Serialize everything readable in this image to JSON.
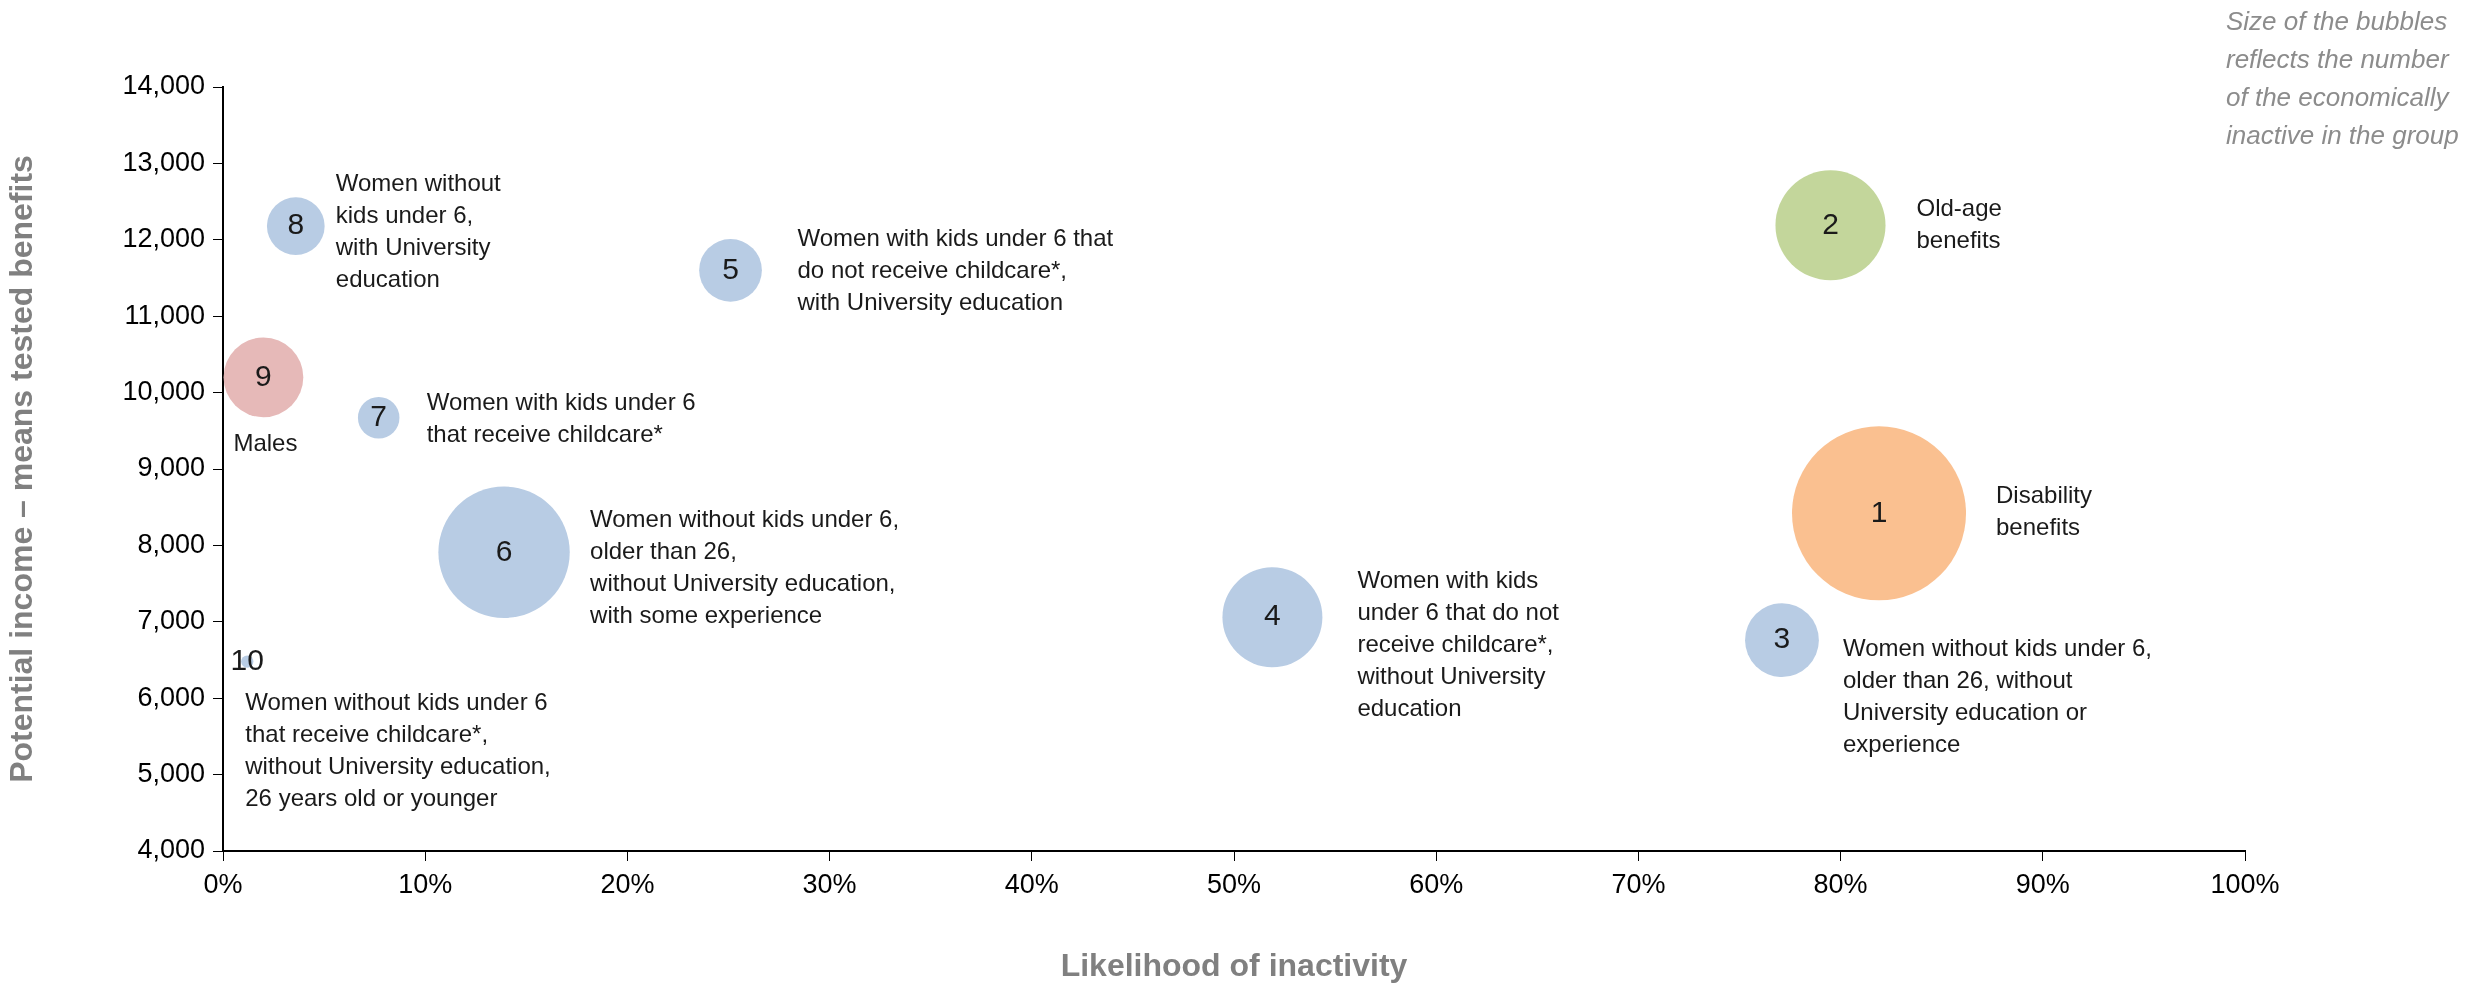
{
  "chart_data": {
    "type": "bubble",
    "xlabel": "Likelihood of inactivity",
    "ylabel": "Potential income – means tested benefits",
    "x": [
      81.9,
      79.5,
      77.1,
      51.9,
      25.1,
      13.9,
      7.7,
      3.6,
      2.0,
      1.2
    ],
    "values": [
      8420,
      12190,
      6760,
      7060,
      11600,
      7910,
      9670,
      12180,
      10200,
      6480
    ],
    "sizes": [
      1,
      0.4,
      0.18,
      0.33,
      0.13,
      0.57,
      0.057,
      0.11,
      0.21,
      0.005
    ],
    "colors": [
      "#fac090",
      "#c3d69b",
      "#b8cce4",
      "#b8cce4",
      "#b8cce4",
      "#b8cce4",
      "#b8cce4",
      "#b8cce4",
      "#e6b9b8",
      "#b8cce4"
    ],
    "xlim": [
      0,
      100
    ],
    "xticks": [
      {
        "value": 0,
        "label": "0%"
      },
      {
        "value": 10,
        "label": "10%"
      },
      {
        "value": 20,
        "label": "20%"
      },
      {
        "value": 30,
        "label": "30%"
      },
      {
        "value": 40,
        "label": "40%"
      },
      {
        "value": 50,
        "label": "50%"
      },
      {
        "value": 60,
        "label": "60%"
      },
      {
        "value": 70,
        "label": "70%"
      },
      {
        "value": 80,
        "label": "80%"
      },
      {
        "value": 90,
        "label": "90%"
      },
      {
        "value": 100,
        "label": "100%"
      }
    ],
    "ylim": [
      4000,
      14000
    ],
    "yticks": [
      {
        "value": 4000,
        "label": "4,000"
      },
      {
        "value": 5000,
        "label": "5,000"
      },
      {
        "value": 6000,
        "label": "6,000"
      },
      {
        "value": 7000,
        "label": "7,000"
      },
      {
        "value": 8000,
        "label": "8,000"
      },
      {
        "value": 9000,
        "label": "9,000"
      },
      {
        "value": 10000,
        "label": "10,000"
      },
      {
        "value": 11000,
        "label": "11,000"
      },
      {
        "value": 12000,
        "label": "12,000"
      },
      {
        "value": 13000,
        "label": "13,000"
      },
      {
        "value": 14000,
        "label": "14,000"
      }
    ],
    "grid": false,
    "legend": false,
    "annotations": [
      {
        "text": "1",
        "x": 81.9,
        "y": 8420
      },
      {
        "text": "2",
        "x": 79.5,
        "y": 12190
      },
      {
        "text": "3",
        "x": 77.1,
        "y": 6760
      },
      {
        "text": "4",
        "x": 51.9,
        "y": 7060
      },
      {
        "text": "5",
        "x": 25.1,
        "y": 11600
      },
      {
        "text": "6",
        "x": 13.9,
        "y": 7910
      },
      {
        "text": "7",
        "x": 7.7,
        "y": 9670
      },
      {
        "text": "8",
        "x": 3.6,
        "y": 12180
      },
      {
        "text": "9",
        "x": 2.0,
        "y": 10200
      },
      {
        "text": "10",
        "x": 1.2,
        "y": 6480
      },
      "Disability\nbenefits",
      "Old-age\nbenefits",
      "Women without kids under 6,\nolder than 26, without\nUniversity education or\nexperience",
      "Women with kids\nunder 6 that do not\nreceive childcare*,\nwithout University\neducation",
      "Women with kids under 6 that\ndo not receive childcare*,\nwith University education",
      "Women without kids under 6,\nolder than 26,\nwithout University education,\nwith some experience",
      "Women with kids under 6\nthat receive childcare*",
      "Women without\nkids under 6,\nwith University\neducation",
      "Males",
      "Women without kids under 6\nthat receive childcare*,\nwithout University education,\n26 years old or younger",
      "Size of the bubbles\nreflects the number\nof the economically\ninactive in the group"
    ]
  }
}
